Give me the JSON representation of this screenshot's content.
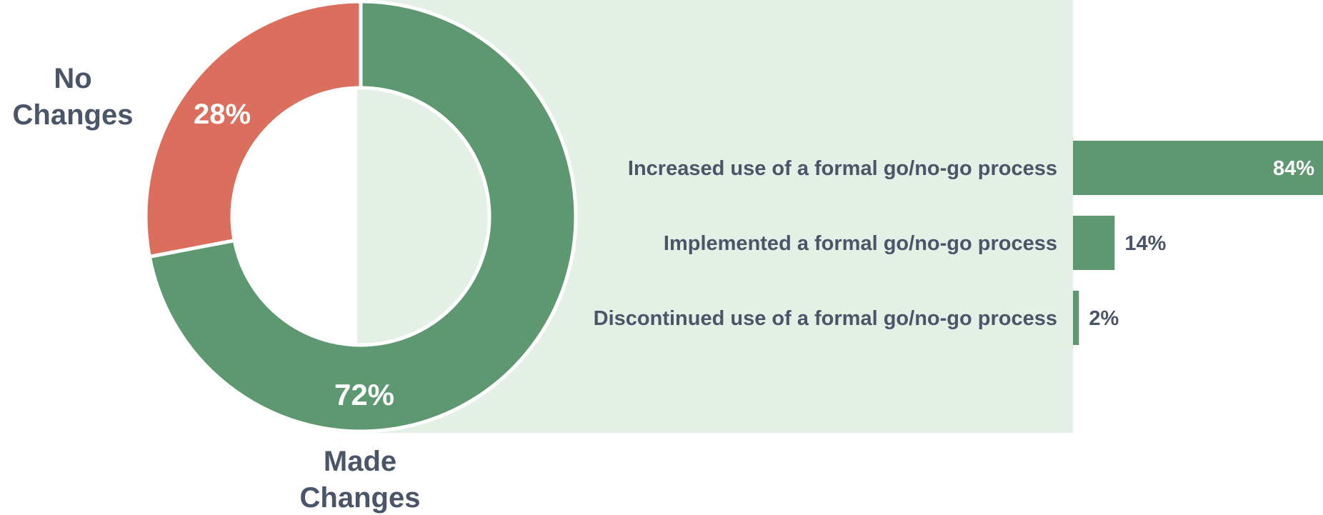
{
  "chart_data": [
    {
      "type": "pie",
      "variant": "donut",
      "categories": [
        "No Changes",
        "Made Changes"
      ],
      "values": [
        28,
        72
      ],
      "value_labels": [
        "28%",
        "72%"
      ],
      "label_lines": {
        "no_changes": [
          "No",
          "Changes"
        ],
        "made_changes": [
          "Made",
          "Changes"
        ]
      },
      "colors": [
        "#dc6e5e",
        "#5d9870"
      ]
    },
    {
      "type": "bar",
      "orientation": "horizontal",
      "categories": [
        "Increased use of a formal go/no-go process",
        "Implemented a formal go/no-go process",
        "Discontinued use of a formal go/no-go process"
      ],
      "values": [
        84,
        14,
        2
      ],
      "value_labels": [
        "84%",
        "14%",
        "2%"
      ],
      "xlim": [
        0,
        84
      ],
      "color": "#5d9870",
      "grid": false,
      "legend": "none"
    }
  ],
  "colors": {
    "panel": "#e4efe6",
    "text": "#4a5668",
    "divider": "#ffffff"
  }
}
